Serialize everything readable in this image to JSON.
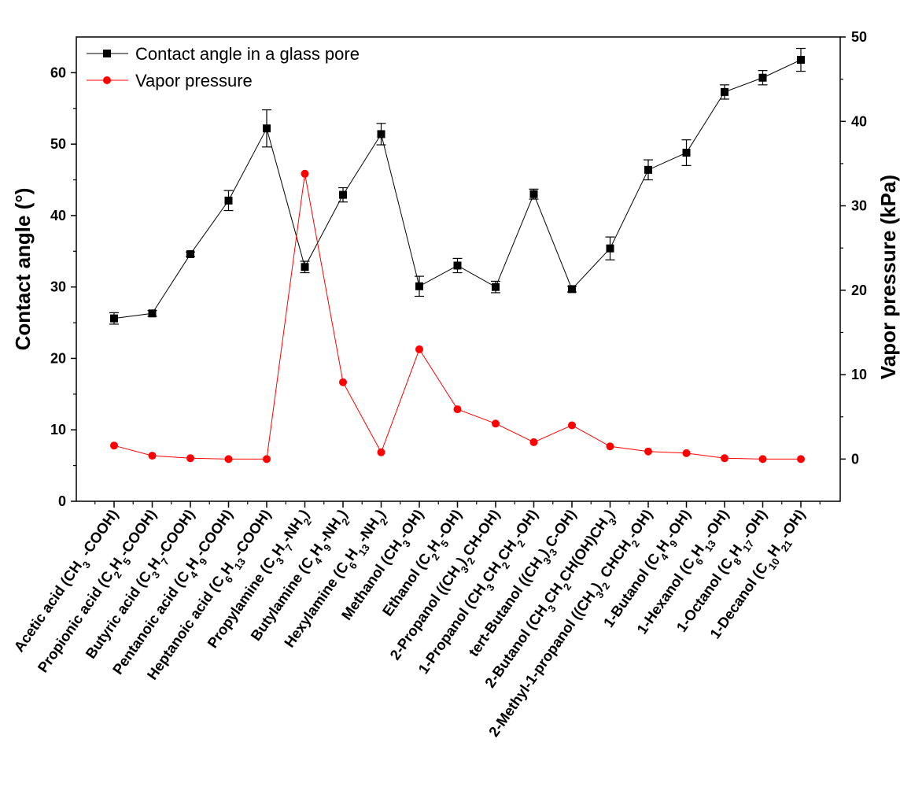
{
  "chart_data": {
    "type": "line",
    "ylabel": "Contact angle (°)",
    "y2label": "Vapor pressure (kPa)",
    "ylim": [
      0,
      65
    ],
    "y2lim": [
      -5,
      50
    ],
    "yticks": [
      "0",
      "10",
      "20",
      "30",
      "40",
      "50",
      "60"
    ],
    "y2ticks": [
      "0",
      "10",
      "20",
      "30",
      "40",
      "50"
    ],
    "legend_position": "top-left",
    "categories": [
      "Acetic acid (CH3-COOH)",
      "Propionic acid (C2H5-COOH)",
      "Butyric acid (C3H7-COOH)",
      "Pentanoic acid (C4H9-COOH)",
      "Heptanoic acid (C6H13-COOH)",
      "Propylamine (C3H7-NH2)",
      "Butylamine (C4H9-NH2)",
      "Hexylamine (C6H13-NH2)",
      "Methanol (CH3-OH)",
      "Ethanol (C2H5-OH)",
      "2-Propanol ((CH3)2CH-OH)",
      "1-Propanol (CH3CH2CH2-OH)",
      "tert-Butanol ((CH3)3C-OH)",
      "2-Butanol (CH3CH2CH(OH)CH3)",
      "2-Methyl-1-propanol ((CH3)2CHCH2-OH)",
      "1-Butanol (C4H9-OH)",
      "1-Hexanol (C6H13-OH)",
      "1-Octanol (C8H17-OH)",
      "1-Decanol (C10H21-OH)"
    ],
    "category_rich": [
      [
        [
          "Acetic acid (CH",
          ""
        ],
        [
          "3",
          "sub"
        ],
        [
          " -COOH)",
          ""
        ]
      ],
      [
        [
          "Propionic acid (C",
          ""
        ],
        [
          "2",
          "sub"
        ],
        [
          "H",
          ""
        ],
        [
          "5",
          "sub"
        ],
        [
          "-COOH)",
          ""
        ]
      ],
      [
        [
          "Butyric acid (C",
          ""
        ],
        [
          "3",
          "sub"
        ],
        [
          "H",
          ""
        ],
        [
          "7",
          "sub"
        ],
        [
          "-COOH)",
          ""
        ]
      ],
      [
        [
          "Pentanoic acid (C",
          ""
        ],
        [
          "4",
          "sub"
        ],
        [
          "H",
          ""
        ],
        [
          "9",
          "sub"
        ],
        [
          "-COOH)",
          ""
        ]
      ],
      [
        [
          "Heptanoic acid (C",
          ""
        ],
        [
          "6",
          "sub"
        ],
        [
          "H",
          ""
        ],
        [
          "13",
          "sub"
        ],
        [
          "-COOH)",
          ""
        ]
      ],
      [
        [
          "Propylamine (C",
          ""
        ],
        [
          "3",
          "sub"
        ],
        [
          "H",
          ""
        ],
        [
          "7",
          "sub"
        ],
        [
          "-NH",
          ""
        ],
        [
          "2",
          "sub"
        ],
        [
          ")",
          ""
        ]
      ],
      [
        [
          "Butylamine (C",
          ""
        ],
        [
          "4",
          "sub"
        ],
        [
          "H",
          ""
        ],
        [
          "9",
          "sub"
        ],
        [
          "-NH",
          ""
        ],
        [
          "2",
          "sub"
        ],
        [
          ")",
          ""
        ]
      ],
      [
        [
          "Hexylamine (C",
          ""
        ],
        [
          "6",
          "sub"
        ],
        [
          "H",
          ""
        ],
        [
          "13",
          "sub"
        ],
        [
          "-NH",
          ""
        ],
        [
          "2",
          "sub"
        ],
        [
          ")",
          ""
        ]
      ],
      [
        [
          "Methanol (CH",
          ""
        ],
        [
          "3",
          "sub"
        ],
        [
          "-OH)",
          ""
        ]
      ],
      [
        [
          "Ethanol (C",
          ""
        ],
        [
          "2",
          "sub"
        ],
        [
          "H",
          ""
        ],
        [
          "5",
          "sub"
        ],
        [
          "-OH)",
          ""
        ]
      ],
      [
        [
          "2-Propanol ((CH",
          ""
        ],
        [
          "3",
          "sub"
        ],
        [
          ")",
          ""
        ],
        [
          "2",
          "sub"
        ],
        [
          "CH-OH)",
          ""
        ]
      ],
      [
        [
          "1-Propanol (CH",
          ""
        ],
        [
          "3",
          "sub"
        ],
        [
          "CH",
          ""
        ],
        [
          "2",
          "sub"
        ],
        [
          "CH",
          ""
        ],
        [
          "2",
          "sub"
        ],
        [
          "-OH)",
          ""
        ]
      ],
      [
        [
          "tert-Butanol ((CH",
          ""
        ],
        [
          "3",
          "sub"
        ],
        [
          ")",
          ""
        ],
        [
          "3",
          "sub"
        ],
        [
          "C-OH)",
          ""
        ]
      ],
      [
        [
          "2-Butanol (CH",
          ""
        ],
        [
          "3",
          "sub"
        ],
        [
          "CH",
          ""
        ],
        [
          "2",
          "sub"
        ],
        [
          "CH(OH)CH",
          ""
        ],
        [
          "3",
          "sub"
        ],
        [
          ")",
          ""
        ]
      ],
      [
        [
          "2-Methyl-1-propanol ((CH",
          ""
        ],
        [
          "3",
          "sub"
        ],
        [
          ")",
          ""
        ],
        [
          "2",
          "sub"
        ],
        [
          " CHCH",
          ""
        ],
        [
          "2",
          "sub"
        ],
        [
          "-OH)",
          ""
        ]
      ],
      [
        [
          "1-Butanol (C",
          ""
        ],
        [
          "4",
          "sub"
        ],
        [
          "H",
          ""
        ],
        [
          "9",
          "sub"
        ],
        [
          "-OH)",
          ""
        ]
      ],
      [
        [
          "1-Hexanol (C",
          ""
        ],
        [
          "6",
          "sub"
        ],
        [
          "H",
          ""
        ],
        [
          "13",
          "sub"
        ],
        [
          "-OH)",
          ""
        ]
      ],
      [
        [
          "1-Octanol (C",
          ""
        ],
        [
          "8",
          "sub"
        ],
        [
          "H",
          ""
        ],
        [
          "17",
          "sub"
        ],
        [
          "-OH)",
          ""
        ]
      ],
      [
        [
          "1-Decanol (C",
          ""
        ],
        [
          "10",
          "sub"
        ],
        [
          "H",
          ""
        ],
        [
          "21",
          "sub"
        ],
        [
          "-OH)",
          ""
        ]
      ]
    ],
    "series": [
      {
        "name": "Contact angle in a glass pore",
        "axis": "left",
        "color": "#000000",
        "marker": "square",
        "values": [
          25.6,
          26.3,
          34.6,
          42.1,
          52.2,
          32.8,
          42.9,
          51.4,
          30.1,
          33.0,
          30.0,
          43.0,
          29.7,
          35.4,
          46.4,
          48.8,
          57.3,
          59.3,
          61.8
        ],
        "errors": [
          0.8,
          0.4,
          0.3,
          1.4,
          2.6,
          0.8,
          1.0,
          1.5,
          1.4,
          1.0,
          0.8,
          0.7,
          0.4,
          1.6,
          1.4,
          1.8,
          1.0,
          1.0,
          1.6
        ]
      },
      {
        "name": "Vapor pressure",
        "axis": "right",
        "color": "#ff0000",
        "marker": "circle",
        "values": [
          1.6,
          0.4,
          0.1,
          0.0,
          0.0,
          33.8,
          9.1,
          0.8,
          13.0,
          5.9,
          4.2,
          2.0,
          4.0,
          1.5,
          0.9,
          0.7,
          0.1,
          0.0,
          0.0
        ],
        "errors": []
      }
    ]
  }
}
